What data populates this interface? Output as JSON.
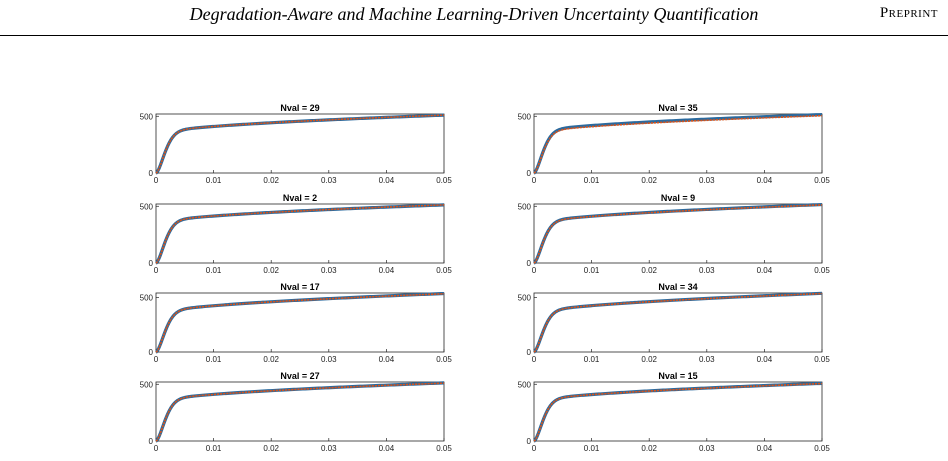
{
  "header": {
    "title": "Degradation-Aware and Machine Learning-Driven Uncertainty Quantification",
    "tag": "Preprint"
  },
  "colors": {
    "axis": "#262626",
    "measured": "#2b6a9e",
    "predicted": "#d95319"
  },
  "chart_data": [
    {
      "type": "line",
      "title": "Nval = 29",
      "xlim": [
        0,
        0.05
      ],
      "ylim": [
        0,
        520
      ],
      "xticks": [
        0,
        0.01,
        0.02,
        0.03,
        0.04,
        0.05
      ],
      "xtick_labels": [
        "0",
        "0.01",
        "0.02",
        "0.03",
        "0.04",
        "0.05"
      ],
      "yticks": [
        0,
        500
      ],
      "ytick_labels": [
        "0",
        "500"
      ],
      "grid": false,
      "series": [
        {
          "values_sigma_y": 340,
          "values_hardening": [
            12,
            60
          ],
          "values_end": 510
        },
        {
          "values_sigma_y": 340,
          "values_hardening": [
            12,
            60
          ],
          "values_end": 510
        }
      ]
    },
    {
      "type": "line",
      "title": "Nval = 35",
      "xlim": [
        0,
        0.05
      ],
      "ylim": [
        0,
        520
      ],
      "xticks": [
        0,
        0.01,
        0.02,
        0.03,
        0.04,
        0.05
      ],
      "xtick_labels": [
        "0",
        "0.01",
        "0.02",
        "0.03",
        "0.04",
        "0.05"
      ],
      "yticks": [
        0,
        500
      ],
      "ytick_labels": [
        "0",
        "500"
      ],
      "grid": false,
      "series": [
        {
          "values_sigma_y": 350,
          "values_hardening": [
            12,
            62
          ],
          "values_end": 515
        },
        {
          "values_sigma_y": 340,
          "values_hardening": [
            12,
            60
          ],
          "values_end": 505
        }
      ]
    },
    {
      "type": "line",
      "title": "Nval = 2",
      "xlim": [
        0,
        0.05
      ],
      "ylim": [
        0,
        520
      ],
      "xticks": [
        0,
        0.01,
        0.02,
        0.03,
        0.04,
        0.05
      ],
      "xtick_labels": [
        "0",
        "0.01",
        "0.02",
        "0.03",
        "0.04",
        "0.05"
      ],
      "yticks": [
        0,
        500
      ],
      "ytick_labels": [
        "0",
        "500"
      ],
      "grid": false,
      "series": [
        {
          "values_sigma_y": 345,
          "values_hardening": [
            12,
            60
          ],
          "values_end": 512
        },
        {
          "values_sigma_y": 345,
          "values_hardening": [
            12,
            60
          ],
          "values_end": 512
        }
      ]
    },
    {
      "type": "line",
      "title": "Nval = 9",
      "xlim": [
        0,
        0.05
      ],
      "ylim": [
        0,
        520
      ],
      "xticks": [
        0,
        0.01,
        0.02,
        0.03,
        0.04,
        0.05
      ],
      "xtick_labels": [
        "0",
        "0.01",
        "0.02",
        "0.03",
        "0.04",
        "0.05"
      ],
      "yticks": [
        0,
        500
      ],
      "ytick_labels": [
        "0",
        "500"
      ],
      "grid": false,
      "series": [
        {
          "values_sigma_y": 340,
          "values_hardening": [
            12,
            60
          ],
          "values_end": 515
        },
        {
          "values_sigma_y": 338,
          "values_hardening": [
            12,
            60
          ],
          "values_end": 512
        }
      ]
    },
    {
      "type": "line",
      "title": "Nval = 17",
      "xlim": [
        0,
        0.05
      ],
      "ylim": [
        0,
        540
      ],
      "xticks": [
        0,
        0.01,
        0.02,
        0.03,
        0.04,
        0.05
      ],
      "xtick_labels": [
        "0",
        "0.01",
        "0.02",
        "0.03",
        "0.04",
        "0.05"
      ],
      "yticks": [
        0,
        500
      ],
      "ytick_labels": [
        "0",
        "500"
      ],
      "grid": false,
      "series": [
        {
          "values_sigma_y": 345,
          "values_hardening": [
            12,
            62
          ],
          "values_end": 535
        },
        {
          "values_sigma_y": 345,
          "values_hardening": [
            12,
            62
          ],
          "values_end": 533
        }
      ]
    },
    {
      "type": "line",
      "title": "Nval = 34",
      "xlim": [
        0,
        0.05
      ],
      "ylim": [
        0,
        540
      ],
      "xticks": [
        0,
        0.01,
        0.02,
        0.03,
        0.04,
        0.05
      ],
      "xtick_labels": [
        "0",
        "0.01",
        "0.02",
        "0.03",
        "0.04",
        "0.05"
      ],
      "yticks": [
        0,
        500
      ],
      "ytick_labels": [
        "0",
        "500"
      ],
      "grid": false,
      "series": [
        {
          "values_sigma_y": 345,
          "values_hardening": [
            12,
            62
          ],
          "values_end": 537
        },
        {
          "values_sigma_y": 345,
          "values_hardening": [
            12,
            62
          ],
          "values_end": 535
        }
      ]
    },
    {
      "type": "line",
      "title": "Nval = 27",
      "xlim": [
        0,
        0.05
      ],
      "ylim": [
        0,
        520
      ],
      "xticks": [
        0,
        0.01,
        0.02,
        0.03,
        0.04,
        0.05
      ],
      "xtick_labels": [
        "0",
        "0.01",
        "0.02",
        "0.03",
        "0.04",
        "0.05"
      ],
      "yticks": [
        0,
        500
      ],
      "ytick_labels": [
        "0",
        "500"
      ],
      "grid": false,
      "series": [
        {
          "values_sigma_y": 340,
          "values_hardening": [
            12,
            60
          ],
          "values_end": 512
        },
        {
          "values_sigma_y": 340,
          "values_hardening": [
            12,
            60
          ],
          "values_end": 510
        }
      ]
    },
    {
      "type": "line",
      "title": "Nval = 15",
      "xlim": [
        0,
        0.05
      ],
      "ylim": [
        0,
        520
      ],
      "xticks": [
        0,
        0.01,
        0.02,
        0.03,
        0.04,
        0.05
      ],
      "xtick_labels": [
        "0",
        "0.01",
        "0.02",
        "0.03",
        "0.04",
        "0.05"
      ],
      "yticks": [
        0,
        500
      ],
      "ytick_labels": [
        "0",
        "500"
      ],
      "grid": false,
      "series": [
        {
          "values_sigma_y": 340,
          "values_hardening": [
            12,
            60
          ],
          "values_end": 508
        },
        {
          "values_sigma_y": 340,
          "values_hardening": [
            12,
            60
          ],
          "values_end": 506
        }
      ]
    }
  ]
}
